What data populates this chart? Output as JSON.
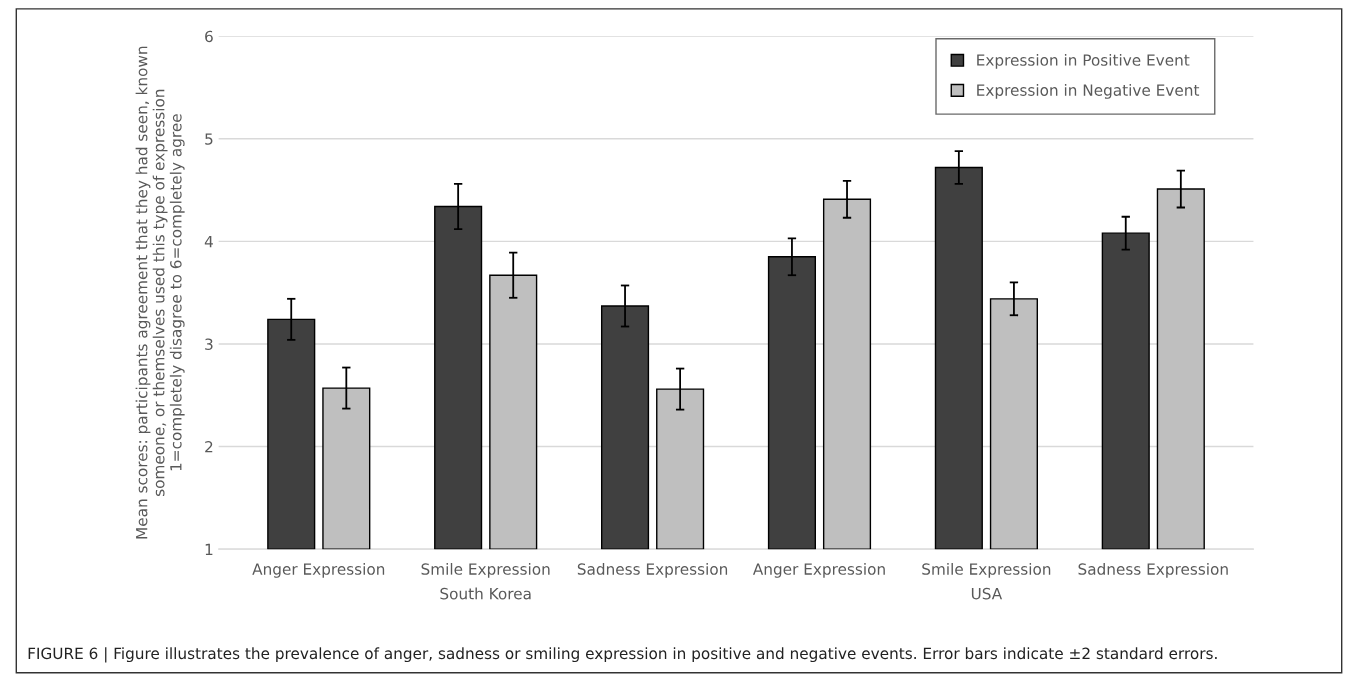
{
  "chart_data": {
    "type": "bar",
    "ylabel": "Mean scores: participants agreement that they had seen, known\nsomeone, or themselves used this type of expression\n1=completely disagree to 6=completely agree",
    "categories": [
      "Anger Expression",
      "Smile Expression",
      "Sadness Expression",
      "Anger Expression",
      "Smile Expression",
      "Sadness Expression"
    ],
    "series": [
      {
        "name": "Expression in Positive Event",
        "color": "#404040",
        "values": [
          3.24,
          4.34,
          3.37,
          3.85,
          4.72,
          4.08
        ],
        "errors": [
          0.2,
          0.22,
          0.2,
          0.18,
          0.16,
          0.16
        ]
      },
      {
        "name": "Expression in Negative Event",
        "color": "#bfbfbf",
        "values": [
          2.57,
          3.67,
          2.56,
          4.41,
          3.44,
          4.51
        ],
        "errors": [
          0.2,
          0.22,
          0.2,
          0.18,
          0.16,
          0.18
        ]
      }
    ],
    "ylim": [
      1,
      6
    ],
    "yticks": [
      1,
      2,
      3,
      4,
      5,
      6
    ],
    "grid": "y",
    "legend": "top right",
    "annotations": [
      "South Korea",
      "USA",
      "FIGURE 6 | Figure illustrates the prevalence of anger, sadness or smiling expression in positive and negative events. Error bars indicate ±2 standard errors."
    ]
  }
}
